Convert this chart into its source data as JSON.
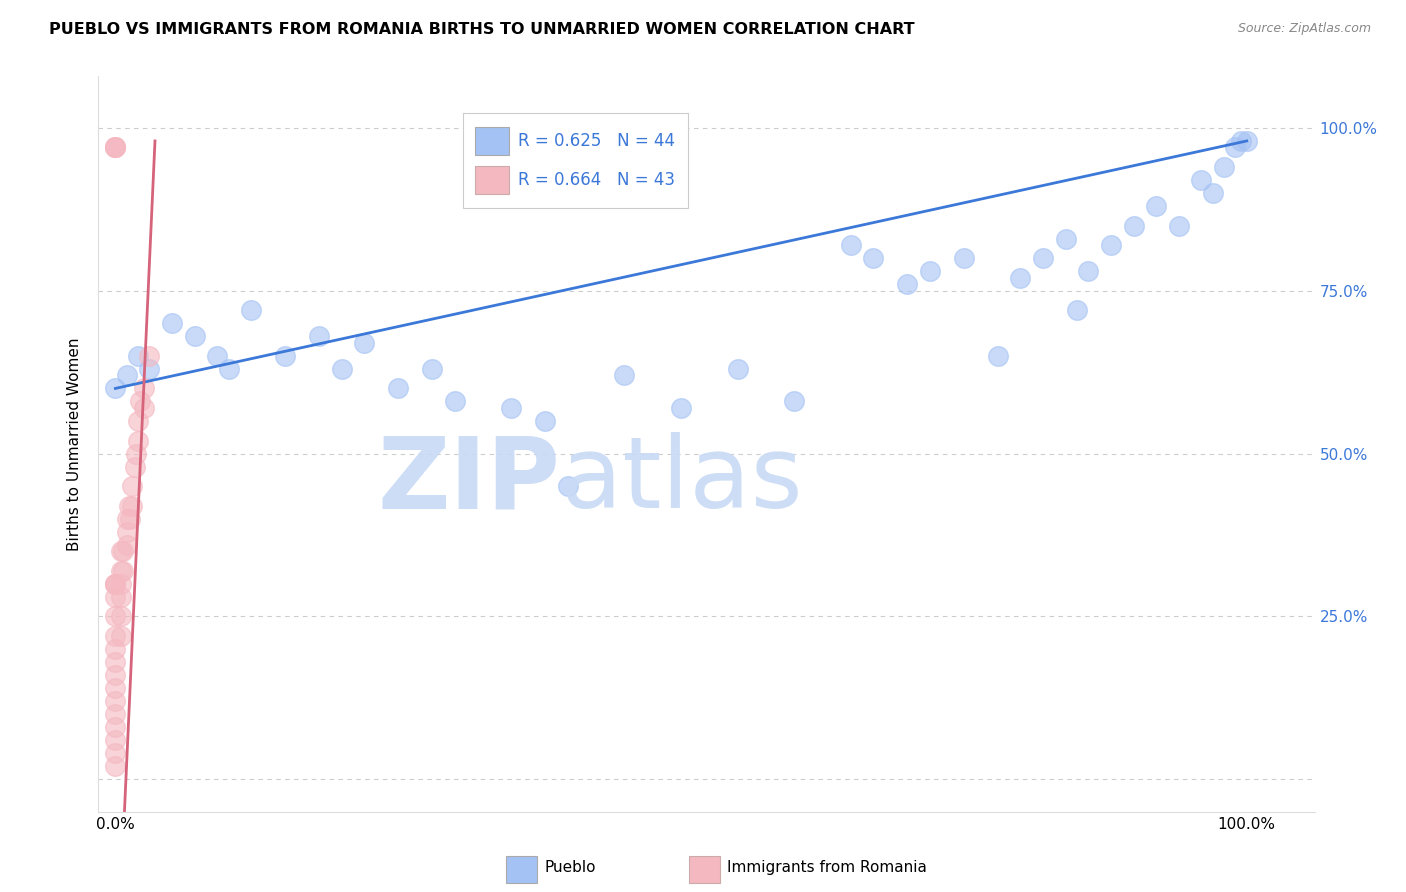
{
  "title": "PUEBLO VS IMMIGRANTS FROM ROMANIA BIRTHS TO UNMARRIED WOMEN CORRELATION CHART",
  "source": "Source: ZipAtlas.com",
  "ylabel": "Births to Unmarried Women",
  "blue_label": "Pueblo",
  "pink_label": "Immigrants from Romania",
  "blue_r": 0.625,
  "blue_n": 44,
  "pink_r": 0.664,
  "pink_n": 43,
  "blue_dot_color": "#a4c2f4",
  "pink_dot_color": "#f4b8c1",
  "blue_line_color": "#3c78d8",
  "pink_line_color": "#d5637a",
  "blue_x": [
    0.0,
    0.01,
    0.02,
    0.03,
    0.05,
    0.07,
    0.09,
    0.1,
    0.12,
    0.15,
    0.18,
    0.2,
    0.22,
    0.25,
    0.28,
    0.3,
    0.35,
    0.38,
    0.4,
    0.45,
    0.5,
    0.55,
    0.6,
    0.65,
    0.67,
    0.7,
    0.72,
    0.75,
    0.78,
    0.8,
    0.82,
    0.84,
    0.86,
    0.88,
    0.9,
    0.92,
    0.94,
    0.96,
    0.97,
    0.98,
    0.99,
    0.995,
    1.0,
    0.85
  ],
  "blue_y": [
    0.6,
    0.62,
    0.65,
    0.63,
    0.7,
    0.68,
    0.65,
    0.63,
    0.72,
    0.65,
    0.68,
    0.63,
    0.67,
    0.6,
    0.63,
    0.58,
    0.57,
    0.55,
    0.45,
    0.62,
    0.57,
    0.63,
    0.58,
    0.82,
    0.8,
    0.76,
    0.78,
    0.8,
    0.65,
    0.77,
    0.8,
    0.83,
    0.78,
    0.82,
    0.85,
    0.88,
    0.85,
    0.92,
    0.9,
    0.94,
    0.97,
    0.98,
    0.98,
    0.72
  ],
  "pink_x": [
    0.0,
    0.0,
    0.0,
    0.0,
    0.0,
    0.0,
    0.0,
    0.0,
    0.0,
    0.0,
    0.0,
    0.0,
    0.0,
    0.0,
    0.0,
    0.0,
    0.0,
    0.0,
    0.0,
    0.0,
    0.005,
    0.005,
    0.005,
    0.005,
    0.005,
    0.005,
    0.007,
    0.007,
    0.01,
    0.01,
    0.01,
    0.012,
    0.013,
    0.015,
    0.015,
    0.017,
    0.018,
    0.02,
    0.02,
    0.022,
    0.025,
    0.025,
    0.03
  ],
  "pink_y": [
    0.97,
    0.97,
    0.97,
    0.97,
    0.3,
    0.3,
    0.3,
    0.28,
    0.25,
    0.22,
    0.2,
    0.18,
    0.16,
    0.14,
    0.12,
    0.1,
    0.08,
    0.06,
    0.04,
    0.02,
    0.35,
    0.32,
    0.3,
    0.28,
    0.25,
    0.22,
    0.35,
    0.32,
    0.4,
    0.38,
    0.36,
    0.42,
    0.4,
    0.45,
    0.42,
    0.48,
    0.5,
    0.55,
    0.52,
    0.58,
    0.6,
    0.57,
    0.65
  ],
  "blue_trend_x": [
    0.0,
    1.0
  ],
  "blue_trend_y": [
    0.6,
    0.98
  ],
  "pink_trend_x0": 0.035,
  "pink_trend_y0": 0.98,
  "pink_trend_x1": 0.008,
  "pink_trend_y1": -0.05,
  "xlim": [
    -0.015,
    1.06
  ],
  "ylim": [
    -0.05,
    1.08
  ],
  "yticks": [
    0.0,
    0.25,
    0.5,
    0.75,
    1.0
  ],
  "ytick_labels_right": [
    "",
    "25.0%",
    "50.0%",
    "75.0%",
    "100.0%"
  ],
  "xtick_positions": [
    0.0,
    1.0
  ],
  "xtick_labels": [
    "0.0%",
    "100.0%"
  ]
}
